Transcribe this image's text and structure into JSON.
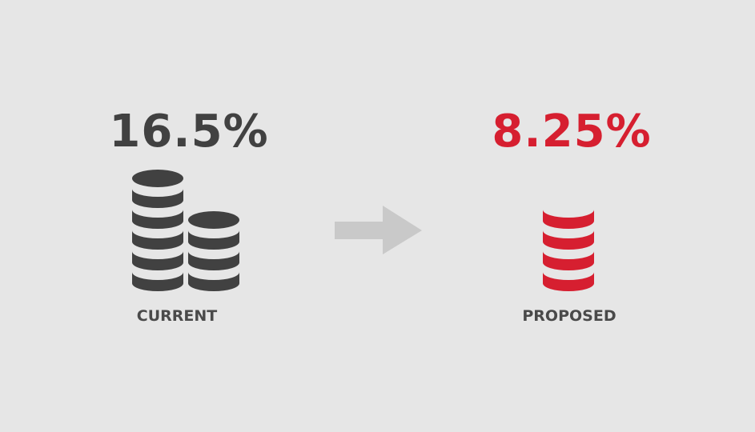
{
  "current": {
    "value": "16.5%",
    "label": "CURRENT",
    "coin_stacks": [
      5,
      3
    ],
    "icon": "coin-stacks-icon"
  },
  "proposed": {
    "value": "8.25%",
    "label": "PROPOSED",
    "coin_stacks": [
      4
    ],
    "icon": "coin-stack-icon"
  },
  "arrow": {
    "icon": "arrow-right-icon"
  },
  "colors": {
    "background": "#e6e6e6",
    "current": "#414141",
    "proposed": "#d61f30",
    "arrow": "#c9c9c9"
  }
}
